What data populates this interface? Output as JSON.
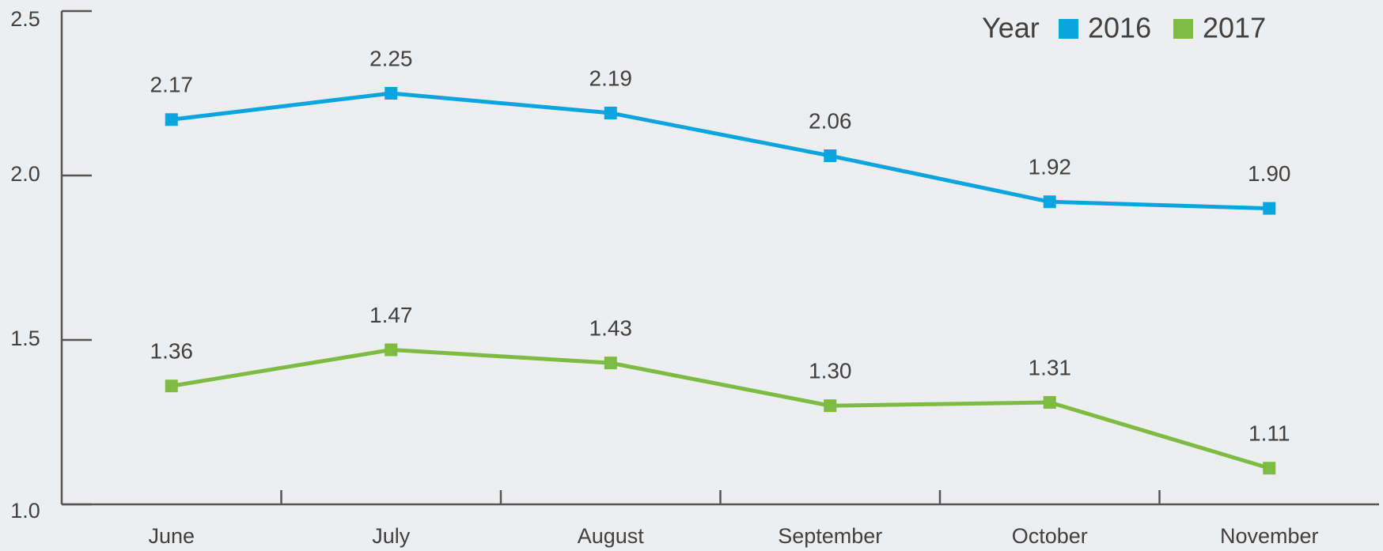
{
  "chart_data": {
    "type": "line",
    "legend_title": "Year",
    "categories": [
      "June",
      "July",
      "August",
      "September",
      "October",
      "November"
    ],
    "series": [
      {
        "name": "2016",
        "color": "#0aa4df",
        "values": [
          2.17,
          2.25,
          2.19,
          2.06,
          1.92,
          1.9
        ],
        "value_labels": [
          "2.17",
          "2.25",
          "2.19",
          "2.06",
          "1.92",
          "1.90"
        ]
      },
      {
        "name": "2017",
        "color": "#7dbb42",
        "values": [
          1.36,
          1.47,
          1.43,
          1.3,
          1.31,
          1.11
        ],
        "value_labels": [
          "1.36",
          "1.47",
          "1.43",
          "1.30",
          "1.31",
          "1.11"
        ]
      }
    ],
    "ylim": [
      1.0,
      2.5
    ],
    "yticks": [
      {
        "value": 1.0,
        "label": "1.0"
      },
      1.5,
      {
        "value": 2.0,
        "label": "2.0"
      },
      2.5
    ],
    "legend": "top-right"
  }
}
